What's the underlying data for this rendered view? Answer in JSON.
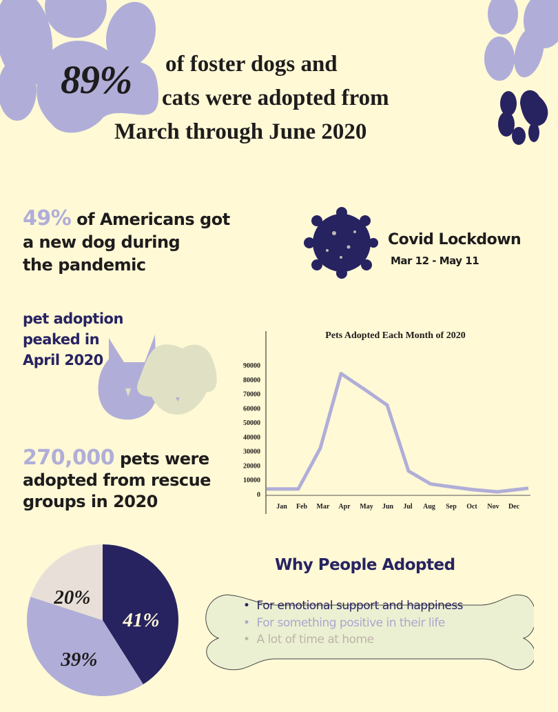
{
  "colors": {
    "background": "#fff9d6",
    "lavender": "#b0aed8",
    "navy": "#272361",
    "beige": "#e8e0d8",
    "bone": "#ebf0d2",
    "dog": "#e0e0c4"
  },
  "headline": {
    "percent": "89%",
    "line1": "of foster dogs and",
    "line2": "cats were adopted from",
    "line3": "March through June 2020"
  },
  "stat1": {
    "highlight": "49%",
    "line1": " of Americans got",
    "line2": "a new dog during",
    "line3": "the pandemic"
  },
  "covid": {
    "icon": "virus-icon",
    "title": "Covid Lockdown",
    "dates": "Mar 12 - May 11"
  },
  "peak": {
    "line1": "pet adoption",
    "line2": "peaked in",
    "line3": "April 2020"
  },
  "stat2": {
    "highlight": "270,000",
    "line1": " pets were",
    "line2": "adopted from rescue",
    "line3": "groups in 2020"
  },
  "reasons": {
    "title": "Why People Adopted",
    "items": [
      "For emotional support and happiness",
      "For something positive in their life",
      "A lot of time at home"
    ],
    "item_colors": [
      "#272361",
      "#a9a6cf",
      "#bdb4a8"
    ]
  },
  "chart_data": [
    {
      "type": "line",
      "title": "Pets Adopted Each Month of 2020",
      "xlabel": "",
      "ylabel": "",
      "categories": [
        "Jan",
        "Feb",
        "Mar",
        "Apr",
        "May",
        "Jun",
        "Jul",
        "Aug",
        "Sep",
        "Oct",
        "Nov",
        "Dec"
      ],
      "values": [
        3500,
        3500,
        32000,
        84000,
        73000,
        62000,
        16000,
        7000,
        5000,
        3000,
        1500,
        4000
      ],
      "yticks": [
        "0",
        "10000",
        "20000",
        "30000",
        "40000",
        "50000",
        "60000",
        "70000",
        "80000",
        "90000"
      ],
      "ylim": [
        0,
        90000
      ],
      "grid": false,
      "line_color": "#b0aed8"
    },
    {
      "type": "pie",
      "slices": [
        {
          "label": "41%",
          "value": 41,
          "color": "#272361"
        },
        {
          "label": "39%",
          "value": 39,
          "color": "#b0aed8"
        },
        {
          "label": "20%",
          "value": 20,
          "color": "#e8e0d8"
        }
      ]
    }
  ]
}
